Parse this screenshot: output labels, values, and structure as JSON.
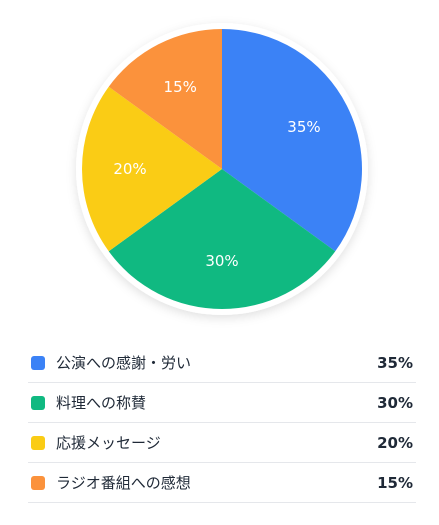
{
  "chart_data": {
    "type": "pie",
    "slices": [
      {
        "label": "公演への感謝・労い",
        "value": 35,
        "display": "35%",
        "color": "#3b82f6"
      },
      {
        "label": "料理への称賛",
        "value": 30,
        "display": "30%",
        "color": "#10b981"
      },
      {
        "label": "応援メッセージ",
        "value": 20,
        "display": "20%",
        "color": "#facc15"
      },
      {
        "label": "ラジオ番組への感想",
        "value": 15,
        "display": "15%",
        "color": "#fb923c"
      }
    ],
    "legend_position": "bottom"
  }
}
